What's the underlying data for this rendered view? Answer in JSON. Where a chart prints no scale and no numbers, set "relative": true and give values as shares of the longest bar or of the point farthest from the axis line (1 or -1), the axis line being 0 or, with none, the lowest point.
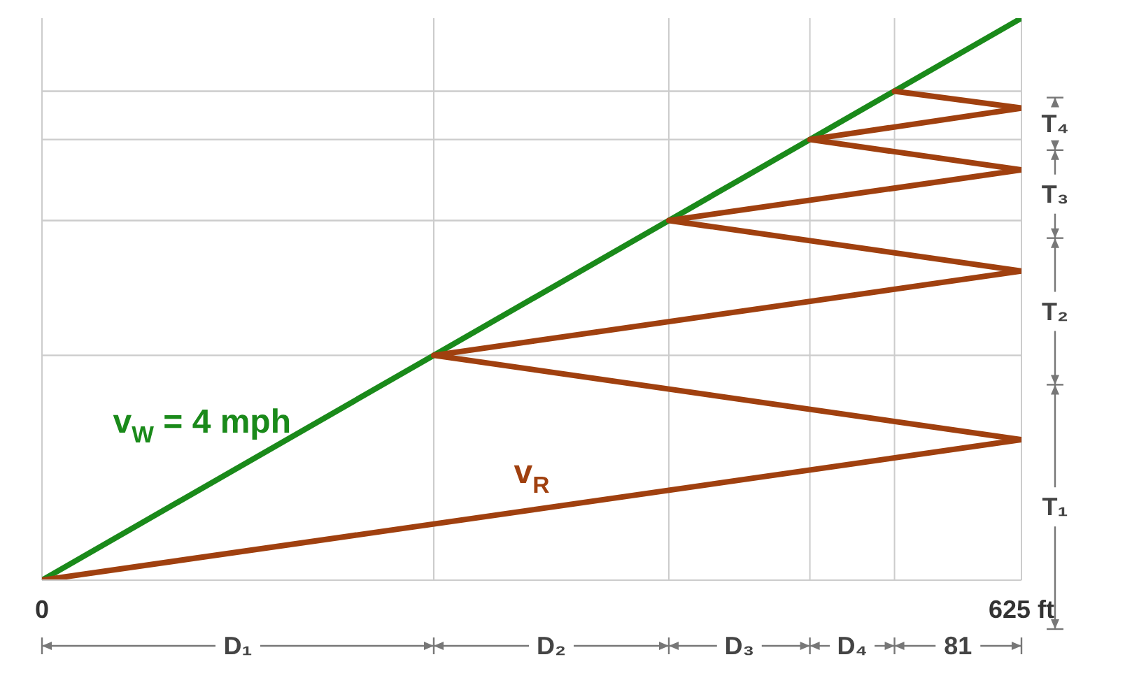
{
  "chart_data": {
    "type": "line",
    "relative": true,
    "xlim": [
      0,
      625
    ],
    "xticks": [
      0,
      {
        "value": 250,
        "label": null
      },
      {
        "value": 400,
        "label": null
      },
      {
        "value": 490,
        "label": null
      },
      {
        "value": 544,
        "label": null
      },
      {
        "value": 625,
        "label": "625 ft"
      }
    ],
    "series": [
      {
        "name": "v$_{W}$ = 4 mph",
        "color": "#1a8a1a",
        "x": [
          0,
          625
        ],
        "values": [
          0,
          1
        ]
      },
      {
        "name": "v$_{R}$",
        "color": "#a0400f",
        "x": [
          0,
          625,
          250,
          625,
          400,
          625,
          490,
          625,
          544
        ],
        "values": [
          0,
          0.25,
          0.4,
          0.55,
          0.64,
          0.73,
          0.784,
          0.84,
          0.87
        ]
      }
    ],
    "ref_lines": [
      {
        "axis": "y",
        "value": 0.4,
        "color": "#cccccc"
      },
      {
        "axis": "y",
        "value": 0.64,
        "color": "#cccccc"
      },
      {
        "axis": "y",
        "value": 0.784,
        "color": "#cccccc"
      },
      {
        "axis": "y",
        "value": 0.87,
        "color": "#cccccc"
      }
    ],
    "grid": "x",
    "annotations": [
      "D₁",
      "D₂",
      "D₃",
      "D₄",
      "81",
      "T₁",
      "T₂",
      "T₃",
      "T₄"
    ]
  }
}
